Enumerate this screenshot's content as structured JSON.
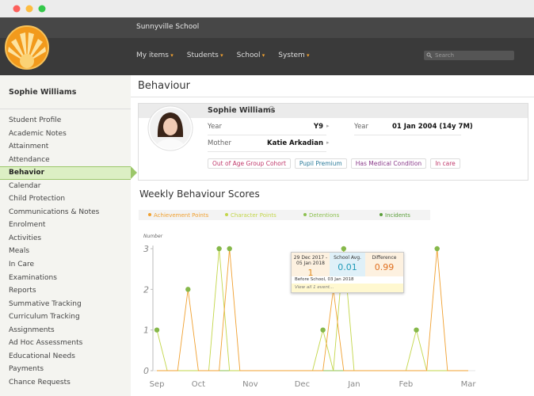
{
  "header": {
    "school_name": "Sunnyville School",
    "nav": [
      "My items",
      "Students",
      "School",
      "System"
    ],
    "search_placeholder": "Search"
  },
  "sidebar": {
    "student_name": "Sophie Williams",
    "menu": [
      "Student Profile",
      "Academic Notes",
      "Attainment",
      "Attendance",
      "Behavior",
      "Calendar",
      "Child Protection",
      "Communications & Notes",
      "Enrolment",
      "Activities",
      "Meals",
      "In Care",
      "Examinations",
      "Reports",
      "Summative Tracking",
      "Curriculum Tracking",
      "Assignments",
      "Ad Hoc Assessments",
      "Educational Needs",
      "Payments",
      "Chance Requests"
    ],
    "active": "Behavior"
  },
  "page": {
    "title": "Behaviour",
    "profile": {
      "name": "Sophie Williams",
      "gender_symbol": "♀",
      "fields": [
        {
          "label": "Year",
          "value": "Y9"
        },
        {
          "label": "Year",
          "value": "01 Jan 2004 (14y 7M)"
        },
        {
          "label": "Mother",
          "value": "Katie Arkadian"
        }
      ],
      "tags": [
        {
          "text": "Out of Age Group Cohort",
          "color": "#c0396b"
        },
        {
          "text": "Pupil Premium",
          "color": "#2a7a9a"
        },
        {
          "text": "Has Medical Condition",
          "color": "#8a3a8a"
        },
        {
          "text": "In care",
          "color": "#c0396b"
        }
      ]
    }
  },
  "chart_data": {
    "type": "line",
    "title": "Weekly Behaviour Scores",
    "y_label": "Number",
    "categories": [
      "Sep",
      null,
      null,
      null,
      "Oct",
      null,
      null,
      null,
      null,
      "Nov",
      null,
      null,
      null,
      null,
      "Dec",
      null,
      null,
      null,
      null,
      "Jan",
      null,
      null,
      null,
      null,
      "Feb",
      null,
      null,
      null,
      null,
      null,
      "Mar"
    ],
    "series": [
      {
        "name": "Achievement Points",
        "color": "#f0a030",
        "values": [
          0,
          0,
          0,
          2,
          0,
          0,
          0,
          3,
          0,
          0,
          0,
          0,
          0,
          0,
          0,
          0,
          0,
          2,
          0,
          0,
          0,
          0,
          0,
          0,
          0,
          0,
          0,
          3,
          0,
          0,
          0
        ]
      },
      {
        "name": "Character Points",
        "color": "#c3d64a",
        "values": [
          1,
          0,
          0,
          0,
          0,
          0,
          3,
          0,
          0,
          0,
          0,
          0,
          0,
          0,
          0,
          0,
          1,
          0,
          3,
          0,
          0,
          0,
          0,
          0,
          0,
          1,
          0,
          0,
          0,
          0,
          0
        ]
      },
      {
        "name": "Detentions",
        "color": "#8dc050",
        "values": [
          0,
          0,
          0,
          0,
          0,
          0,
          0,
          0,
          0,
          0,
          0,
          0,
          0,
          0,
          0,
          0,
          0,
          0,
          0,
          0,
          0,
          0,
          0,
          0,
          0,
          0,
          0,
          0,
          0,
          0,
          0
        ]
      },
      {
        "name": "Incidents",
        "color": "#5a9e3a",
        "values": [
          0,
          0,
          0,
          0,
          0,
          0,
          0,
          0,
          0,
          0,
          0,
          0,
          0,
          0,
          0,
          0,
          0,
          0,
          0,
          0,
          0,
          0,
          0,
          0,
          0,
          0,
          0,
          0,
          0,
          0,
          0
        ]
      }
    ],
    "point_color": "#86b84a",
    "ylim": [
      0,
      3
    ],
    "yticks": [
      0,
      1,
      2,
      3
    ],
    "grid": false,
    "tooltip": {
      "period": "29 Dec 2017 - 05 Jan 2018",
      "value": 1,
      "school_avg_label": "School Avg.",
      "school_avg": 0.01,
      "difference_label": "Difference",
      "difference": 0.99,
      "event": "Before School, 03 Jan 2018",
      "link": "View all 1 event..."
    }
  }
}
